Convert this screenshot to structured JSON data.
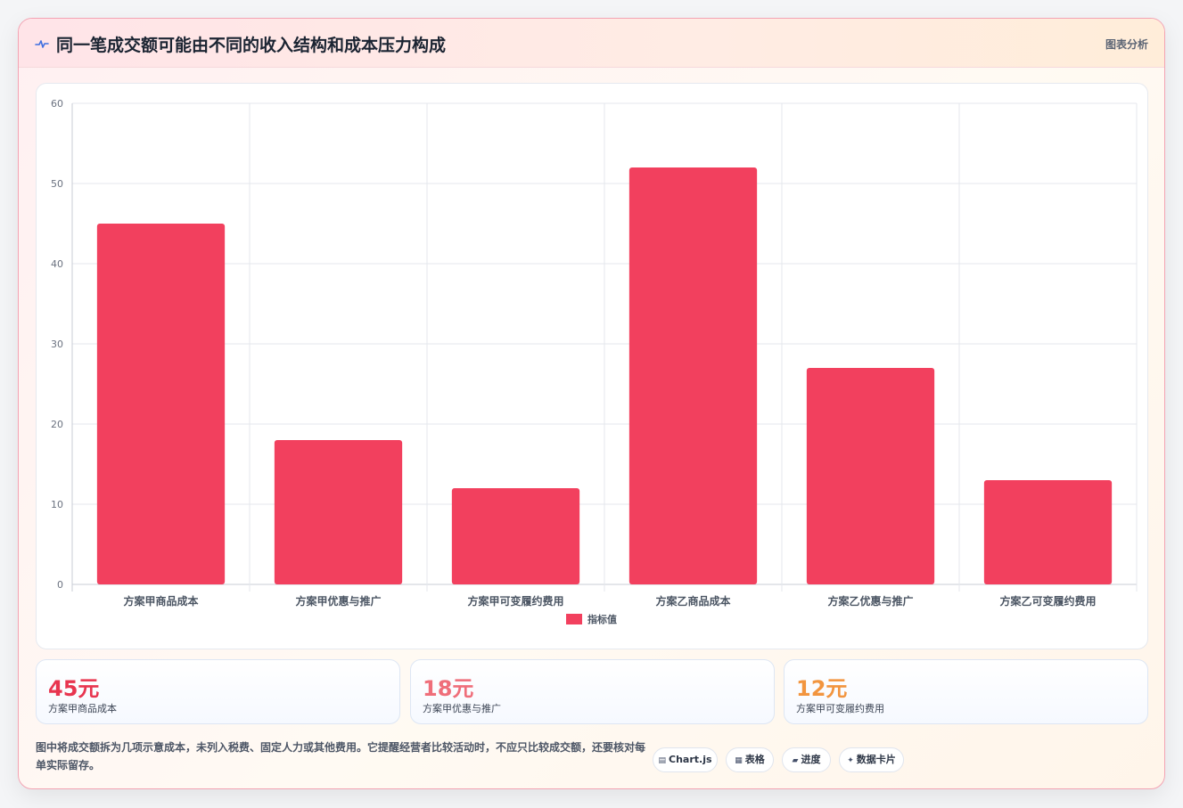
{
  "header": {
    "icon": "pulse-icon",
    "title": "同一笔成交额可能由不同的收入结构和成本压力构成",
    "tag": "图表分析"
  },
  "colors": {
    "bar": "#f2405e",
    "stat1": "#e8354f",
    "stat2": "#ef6e7a",
    "stat3": "#f2953f"
  },
  "chart_data": {
    "type": "bar",
    "categories": [
      "方案甲商品成本",
      "方案甲优惠与推广",
      "方案甲可变履约费用",
      "方案乙商品成本",
      "方案乙优惠与推广",
      "方案乙可变履约费用"
    ],
    "series": [
      {
        "name": "指标值",
        "values": [
          45,
          18,
          12,
          52,
          27,
          13
        ]
      }
    ],
    "ylim": [
      0,
      60
    ],
    "yticks": [
      0,
      10,
      20,
      30,
      40,
      50,
      60
    ],
    "grid": true,
    "legend": "bottom"
  },
  "stats": [
    {
      "value": "45元",
      "label": "方案甲商品成本"
    },
    {
      "value": "18元",
      "label": "方案甲优惠与推广"
    },
    {
      "value": "12元",
      "label": "方案甲可变履约费用"
    }
  ],
  "note": "图中将成交额拆为几项示意成本，未列入税费、固定人力或其他费用。它提醒经营者比较活动时，不应只比较成交额，还要核对每单实际留存。",
  "tags": [
    {
      "icon": "chart-icon",
      "glyph": "▤",
      "label": "Chart.js"
    },
    {
      "icon": "table-icon",
      "glyph": "▦",
      "label": "表格"
    },
    {
      "icon": "progress-icon",
      "glyph": "▰",
      "label": "进度"
    },
    {
      "icon": "card-icon",
      "glyph": "✦",
      "label": "数据卡片"
    }
  ]
}
